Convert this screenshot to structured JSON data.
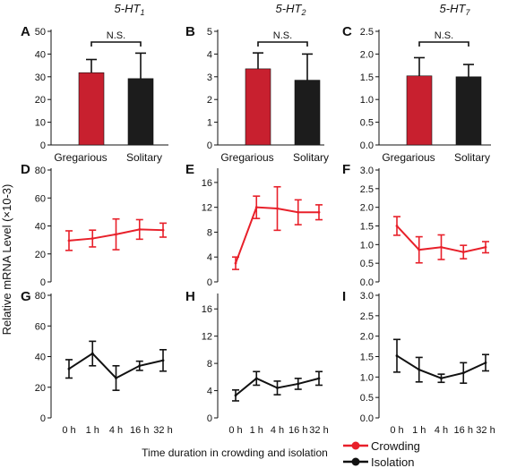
{
  "chart_data": [
    {
      "id": "A",
      "type": "bar",
      "title": "5-HT1",
      "categories": [
        "Gregarious",
        "Solitary"
      ],
      "values": [
        31.8,
        29.2
      ],
      "errors": [
        5.8,
        11.2
      ],
      "ylim": [
        0,
        50
      ],
      "yticks": [
        0,
        10,
        20,
        30,
        40,
        50
      ],
      "colors": [
        "#c8202f",
        "#1c1c1c"
      ],
      "significance": "N.S."
    },
    {
      "id": "B",
      "type": "bar",
      "title": "5-HT2",
      "categories": [
        "Gregarious",
        "Solitary"
      ],
      "values": [
        3.35,
        2.85
      ],
      "errors": [
        0.7,
        1.15
      ],
      "ylim": [
        0,
        5
      ],
      "yticks": [
        0,
        1,
        2,
        3,
        4,
        5
      ],
      "colors": [
        "#c8202f",
        "#1c1c1c"
      ],
      "significance": "N.S."
    },
    {
      "id": "C",
      "type": "bar",
      "title": "5-HT7",
      "categories": [
        "Gregarious",
        "Solitary"
      ],
      "values": [
        1.52,
        1.5
      ],
      "errors": [
        0.4,
        0.27
      ],
      "ylim": [
        0,
        2.5
      ],
      "yticks": [
        "0.0",
        "0.5",
        "1.0",
        "1.5",
        "2.0",
        "2.5"
      ],
      "colors": [
        "#c8202f",
        "#1c1c1c"
      ],
      "significance": "N.S."
    },
    {
      "id": "D",
      "type": "line",
      "color": "#e8202a",
      "x": [
        "0 h",
        "1 h",
        "4 h",
        "16 h",
        "32 h"
      ],
      "values": [
        29.5,
        31,
        34,
        37.5,
        37
      ],
      "errors": [
        7,
        6,
        11,
        7,
        5
      ],
      "ylim": [
        0,
        80
      ],
      "yticks": [
        0,
        20,
        40,
        60,
        80
      ]
    },
    {
      "id": "E",
      "type": "line",
      "color": "#e8202a",
      "x": [
        "0 h",
        "1 h",
        "4 h",
        "16 h",
        "32 h"
      ],
      "values": [
        3,
        12,
        11.8,
        11.2,
        11.2
      ],
      "errors": [
        1,
        1.8,
        3.5,
        2,
        1.2
      ],
      "ylim": [
        0,
        18
      ],
      "yticks": [
        0,
        4,
        8,
        12,
        16
      ]
    },
    {
      "id": "F",
      "type": "line",
      "color": "#e8202a",
      "x": [
        "0 h",
        "1 h",
        "4 h",
        "16 h",
        "32 h"
      ],
      "values": [
        1.5,
        0.86,
        0.93,
        0.8,
        0.93
      ],
      "errors": [
        0.25,
        0.35,
        0.33,
        0.18,
        0.15
      ],
      "ylim": [
        0,
        3
      ],
      "yticks": [
        "0.0",
        "0.5",
        "1.0",
        "1.5",
        "2.0",
        "2.5",
        "3.0"
      ]
    },
    {
      "id": "G",
      "type": "line",
      "color": "#111111",
      "x": [
        "0 h",
        "1 h",
        "4 h",
        "16 h",
        "32 h"
      ],
      "values": [
        32,
        42,
        26,
        34,
        37.5
      ],
      "errors": [
        6,
        8,
        8,
        3,
        7
      ],
      "ylim": [
        0,
        80
      ],
      "yticks": [
        0,
        20,
        40,
        60,
        80
      ]
    },
    {
      "id": "H",
      "type": "line",
      "color": "#111111",
      "x": [
        "0 h",
        "1 h",
        "4 h",
        "16 h",
        "32 h"
      ],
      "values": [
        3.3,
        5.8,
        4.4,
        5,
        5.8
      ],
      "errors": [
        0.8,
        1,
        1,
        0.8,
        1
      ],
      "ylim": [
        0,
        18
      ],
      "yticks": [
        0,
        4,
        8,
        12,
        16
      ]
    },
    {
      "id": "I",
      "type": "line",
      "color": "#111111",
      "x": [
        "0 h",
        "1 h",
        "4 h",
        "16 h",
        "32 h"
      ],
      "values": [
        1.52,
        1.18,
        0.97,
        1.1,
        1.35
      ],
      "errors": [
        0.4,
        0.3,
        0.1,
        0.25,
        0.2
      ],
      "ylim": [
        0,
        3
      ],
      "yticks": [
        "0.0",
        "0.5",
        "1.0",
        "1.5",
        "2.0",
        "2.5",
        "3.0"
      ]
    }
  ],
  "ylabel": "Relative mRNA Level (×10-3)",
  "xlabel": "Time duration in crowding and isolation",
  "legend": {
    "placement": "bottom-right",
    "entries": [
      {
        "label": "Crowding",
        "color": "#e8202a"
      },
      {
        "label": "Isolation",
        "color": "#111111"
      }
    ]
  }
}
